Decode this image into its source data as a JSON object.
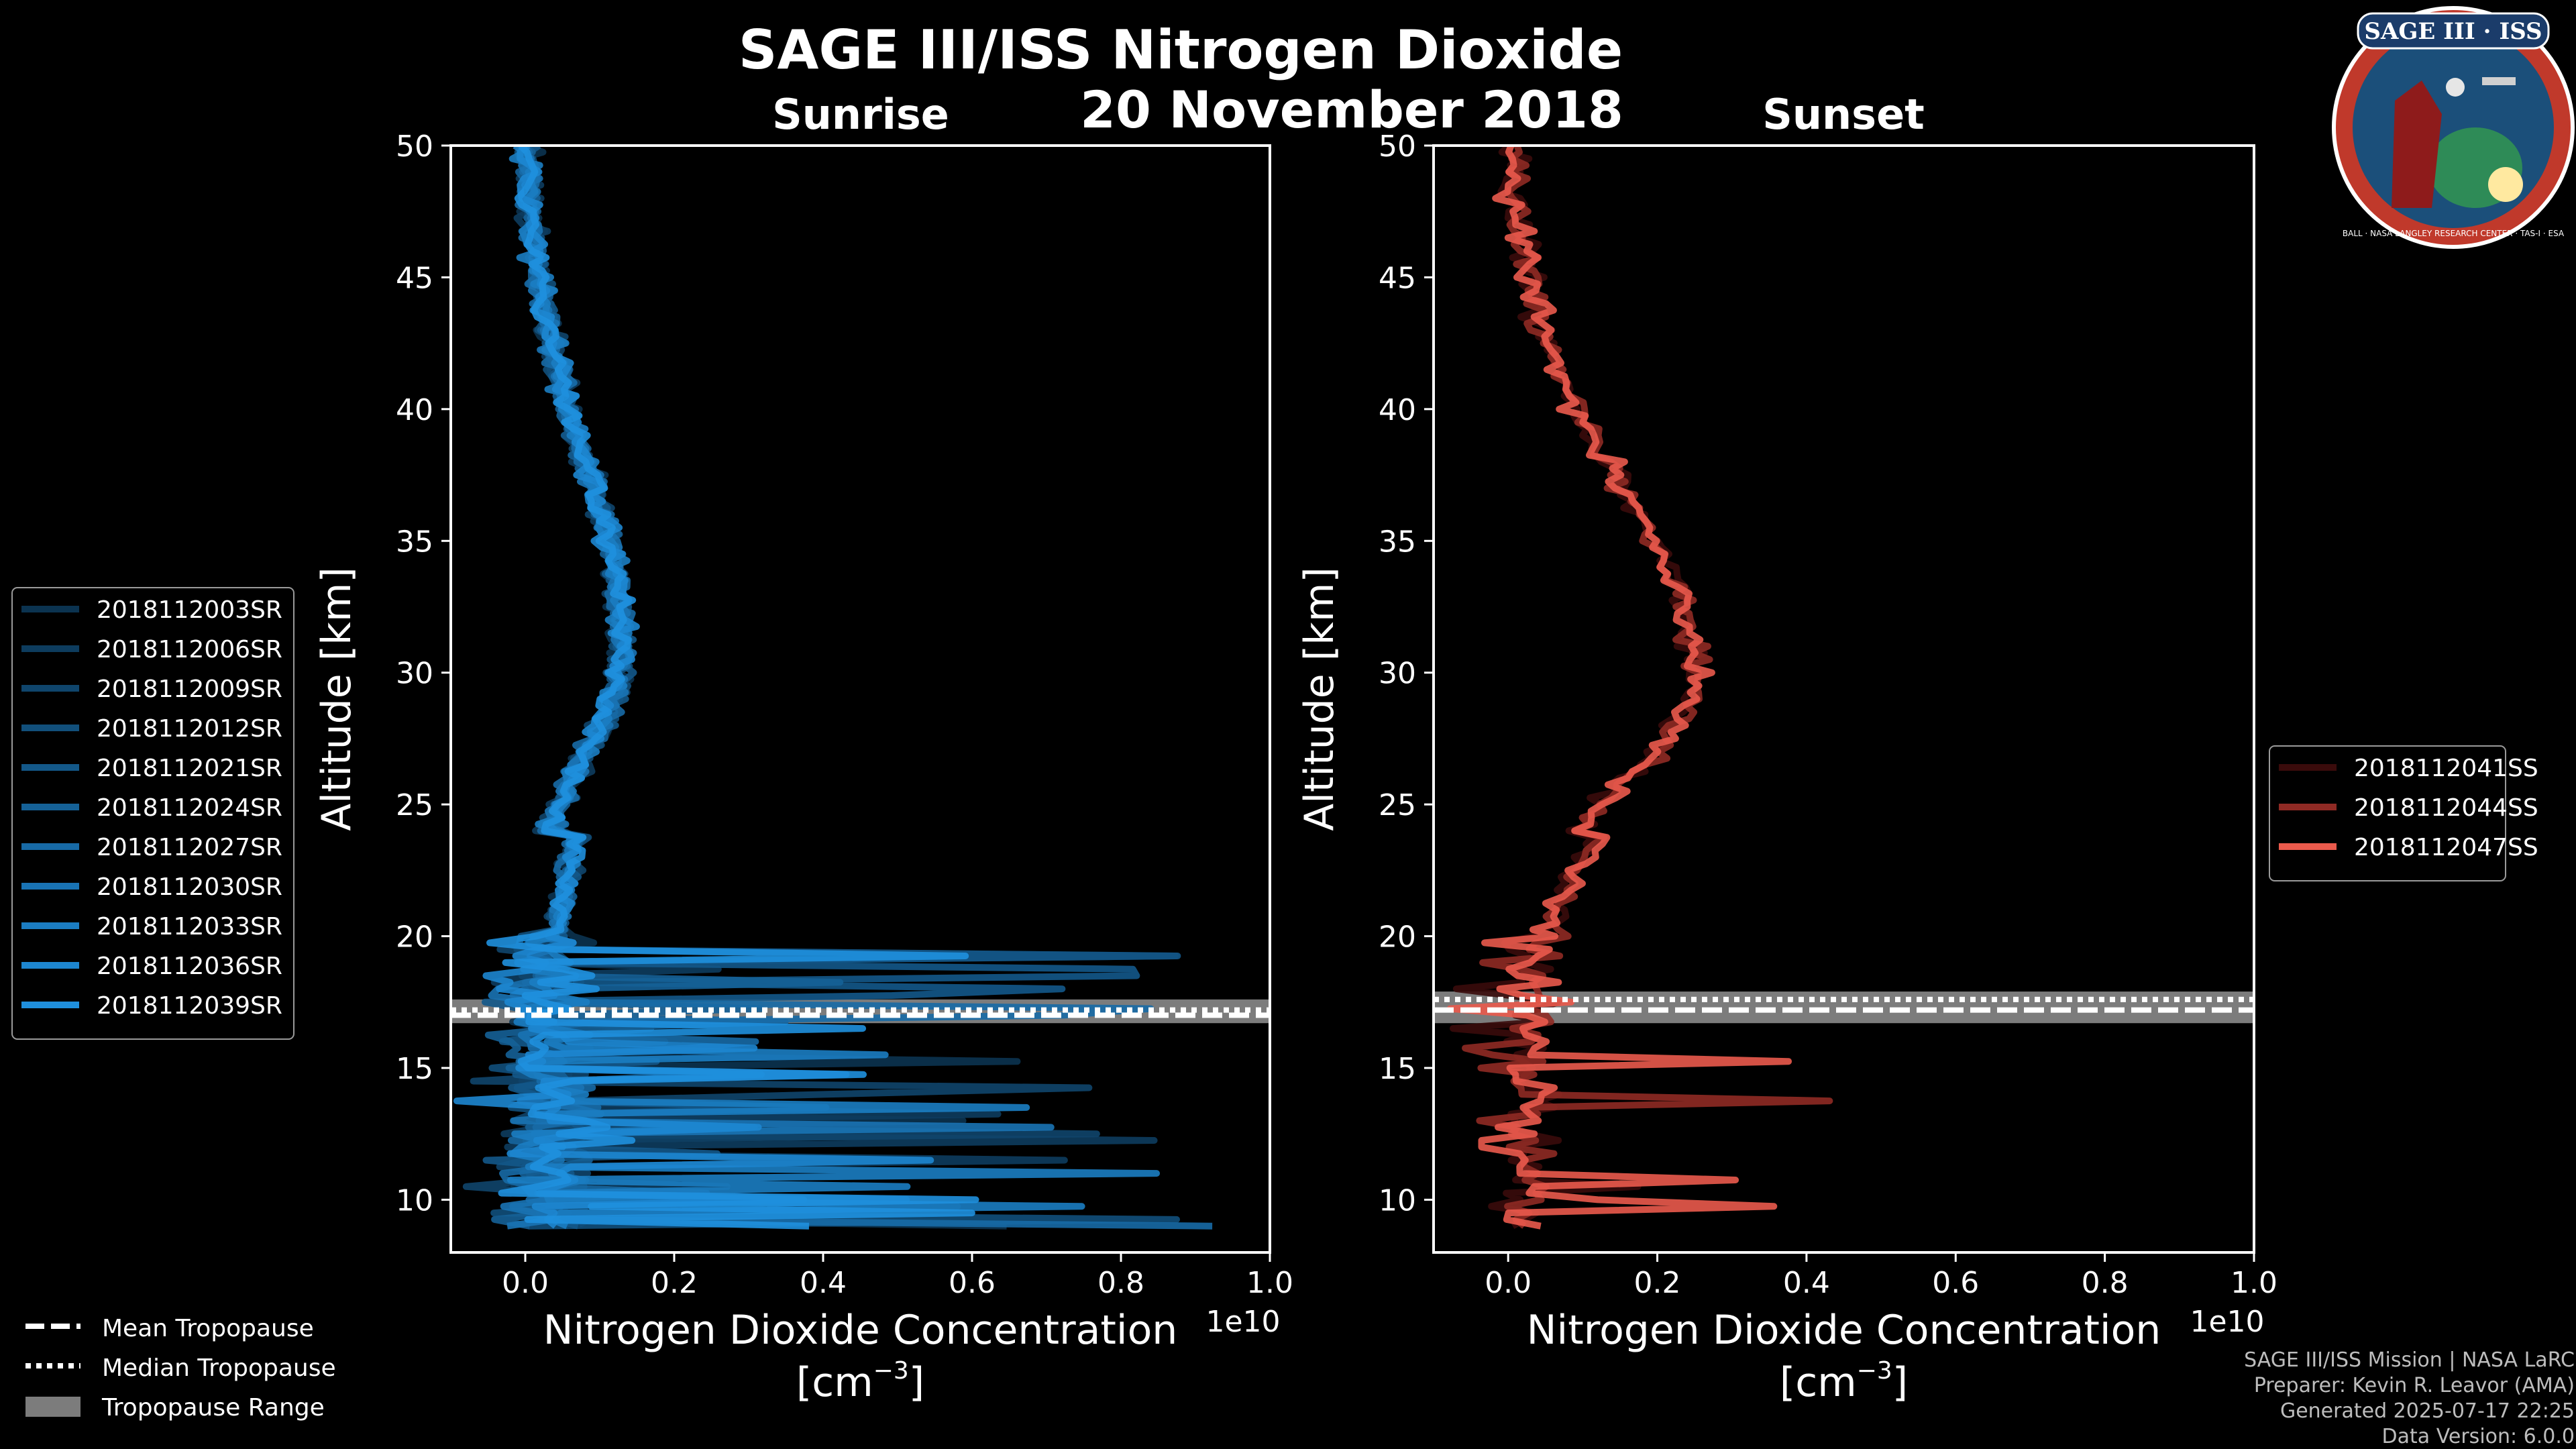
{
  "title": "SAGE III/ISS Nitrogen Dioxide",
  "subtitle_date": "20 November 2018",
  "logo": {
    "text": "SAGE III · ISS",
    "ring_text": "BALL · NASA LANGLEY RESEARCH CENTER · TAS-I · ESA"
  },
  "credits": [
    "SAGE III/ISS Mission | NASA LaRC",
    "Preparer: Kevin R. Leavor (AMA)",
    "Generated 2025-07-17 22:25",
    "Data Version: 6.0.0"
  ],
  "tropopause_legend": [
    {
      "label": "Mean Tropopause",
      "style": "dashed"
    },
    {
      "label": "Median Tropopause",
      "style": "dotted"
    },
    {
      "label": "Tropopause Range",
      "style": "band"
    }
  ],
  "chart_data": [
    {
      "type": "line",
      "title": "Sunrise",
      "xlabel": "Nitrogen Dioxide Concentration",
      "xlabel_units": "[cm",
      "xlabel_exp": "−3",
      "xlabel_close": "]",
      "x_multiplier": "1e10",
      "ylabel": "Altitude [km]",
      "xlim": [
        -1000000000.0,
        10000000000.0
      ],
      "ylim": [
        8,
        50
      ],
      "xticks": [
        0,
        2000000000.0,
        4000000000.0,
        6000000000.0,
        8000000000.0,
        10000000000.0
      ],
      "xtick_labels": [
        "0.0",
        "0.2",
        "0.4",
        "0.6",
        "0.8",
        "1.0"
      ],
      "yticks": [
        10,
        15,
        20,
        25,
        30,
        35,
        40,
        45,
        50
      ],
      "grid": false,
      "legend_position": "left",
      "tropopause": {
        "mean": 17.0,
        "median": 17.2,
        "range": [
          16.7,
          17.6
        ]
      },
      "colors": {
        "line": "#1e90d6",
        "dark": "#0b3350"
      },
      "series": [
        {
          "name": "2018112003SR",
          "color": "#0b3350"
        },
        {
          "name": "2018112006SR",
          "color": "#0d3c5e"
        },
        {
          "name": "2018112009SR",
          "color": "#0f456c"
        },
        {
          "name": "2018112012SR",
          "color": "#114f7b"
        },
        {
          "name": "2018112021SR",
          "color": "#135889"
        },
        {
          "name": "2018112024SR",
          "color": "#156197"
        },
        {
          "name": "2018112027SR",
          "color": "#176aa6"
        },
        {
          "name": "2018112030SR",
          "color": "#1973b4"
        },
        {
          "name": "2018112033SR",
          "color": "#1b7dc2"
        },
        {
          "name": "2018112036SR",
          "color": "#1d86d0"
        },
        {
          "name": "2018112039SR",
          "color": "#1f90de"
        }
      ]
    },
    {
      "type": "line",
      "title": "Sunset",
      "xlabel": "Nitrogen Dioxide Concentration",
      "xlabel_units": "[cm",
      "xlabel_exp": "−3",
      "xlabel_close": "]",
      "x_multiplier": "1e10",
      "ylabel": "Altitude [km]",
      "xlim": [
        -1000000000.0,
        10000000000.0
      ],
      "ylim": [
        8,
        50
      ],
      "xticks": [
        0,
        2000000000.0,
        4000000000.0,
        6000000000.0,
        8000000000.0,
        10000000000.0
      ],
      "xtick_labels": [
        "0.0",
        "0.2",
        "0.4",
        "0.6",
        "0.8",
        "1.0"
      ],
      "yticks": [
        10,
        15,
        20,
        25,
        30,
        35,
        40,
        45,
        50
      ],
      "grid": false,
      "legend_position": "right",
      "tropopause": {
        "mean": 17.2,
        "median": 17.6,
        "range": [
          16.7,
          17.9
        ]
      },
      "colors": {
        "line": "#e8554a",
        "dark": "#3a0b0b"
      },
      "series": [
        {
          "name": "2018112041SS",
          "color": "#3a0b0b"
        },
        {
          "name": "2018112044SS",
          "color": "#8f2a24"
        },
        {
          "name": "2018112047SS",
          "color": "#ea5a4c"
        }
      ]
    }
  ]
}
